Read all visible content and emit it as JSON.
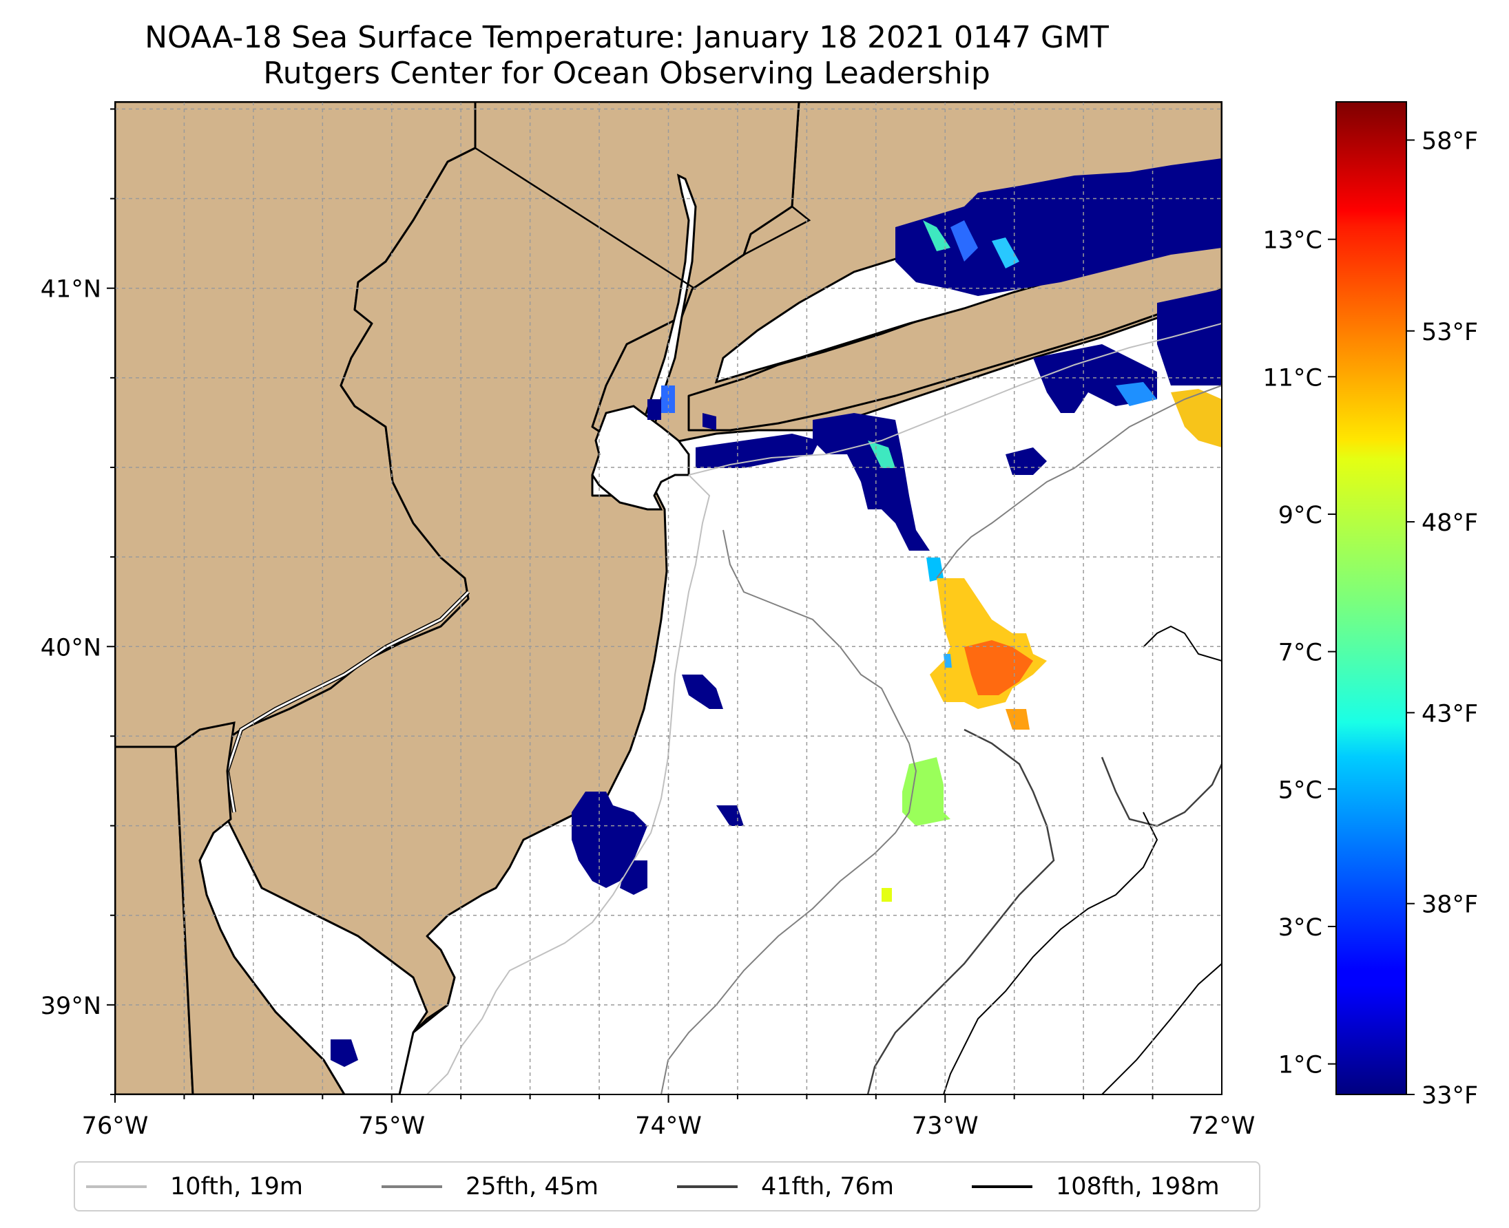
{
  "title": {
    "line1": "NOAA-18 Sea Surface Temperature: January 18 2021 0147 GMT",
    "line2": "Rutgers Center for Ocean Observing Leadership"
  },
  "map": {
    "extent": {
      "lon_min": -76.0,
      "lon_max": -72.0,
      "lat_min": 38.75,
      "lat_max": 41.52
    },
    "land_color": "#d2b48c",
    "water_color": "#ffffff",
    "gridlines": "dashed light gray",
    "lon_ticks": [
      {
        "value": -76,
        "label": "76°W"
      },
      {
        "value": -75,
        "label": "75°W"
      },
      {
        "value": -74,
        "label": "74°W"
      },
      {
        "value": -73,
        "label": "73°W"
      },
      {
        "value": -72,
        "label": "72°W"
      }
    ],
    "lat_ticks": [
      {
        "value": 41,
        "label": "41°N"
      },
      {
        "value": 40,
        "label": "40°N"
      },
      {
        "value": 39,
        "label": "39°N"
      }
    ]
  },
  "colorbar": {
    "colormap": "jet",
    "celsius_ticks": [
      {
        "value": 13,
        "label": "13°C"
      },
      {
        "value": 11,
        "label": "11°C"
      },
      {
        "value": 9,
        "label": "9°C"
      },
      {
        "value": 7,
        "label": "7°C"
      },
      {
        "value": 5,
        "label": "5°C"
      },
      {
        "value": 3,
        "label": "3°C"
      },
      {
        "value": 1,
        "label": "1°C"
      }
    ],
    "fahrenheit_ticks": [
      {
        "value": 58,
        "label": "58°F"
      },
      {
        "value": 53,
        "label": "53°F"
      },
      {
        "value": 48,
        "label": "48°F"
      },
      {
        "value": 43,
        "label": "43°F"
      },
      {
        "value": 38,
        "label": "38°F"
      },
      {
        "value": 33,
        "label": "33°F"
      }
    ],
    "range_f": [
      33,
      59
    ]
  },
  "legend": [
    {
      "label": "10fth, 19m",
      "color": "#c0c0c0"
    },
    {
      "label": "25fth, 45m",
      "color": "#808080"
    },
    {
      "label": "41fth, 76m",
      "color": "#404040"
    },
    {
      "label": "108fth, 198m",
      "color": "#000000"
    }
  ]
}
